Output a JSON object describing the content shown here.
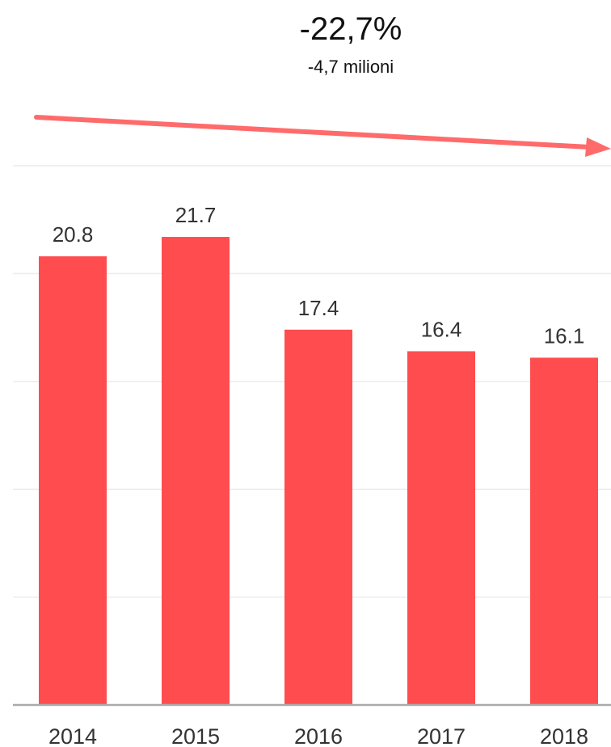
{
  "header": {
    "change_percent": "-22,7%",
    "change_absolute": "-4,7 milioni"
  },
  "colors": {
    "bar": "#ff4d4f",
    "trend_arrow": "#ff6b6b",
    "gridline": "#ececec",
    "axis_line": "#aaaaaa",
    "text": "#333333"
  },
  "chart_data": {
    "type": "bar",
    "categories": [
      "2014",
      "2015",
      "2016",
      "2017",
      "2018"
    ],
    "values": [
      20.8,
      21.7,
      17.4,
      16.4,
      16.1
    ],
    "data_labels": [
      "20.8",
      "21.7",
      "17.4",
      "16.4",
      "16.1"
    ],
    "title": "",
    "xlabel": "",
    "ylabel": "",
    "ylim": [
      0,
      25
    ],
    "grid": true,
    "legend": "none",
    "annotation": "trend arrow pointing down-right above bars"
  }
}
